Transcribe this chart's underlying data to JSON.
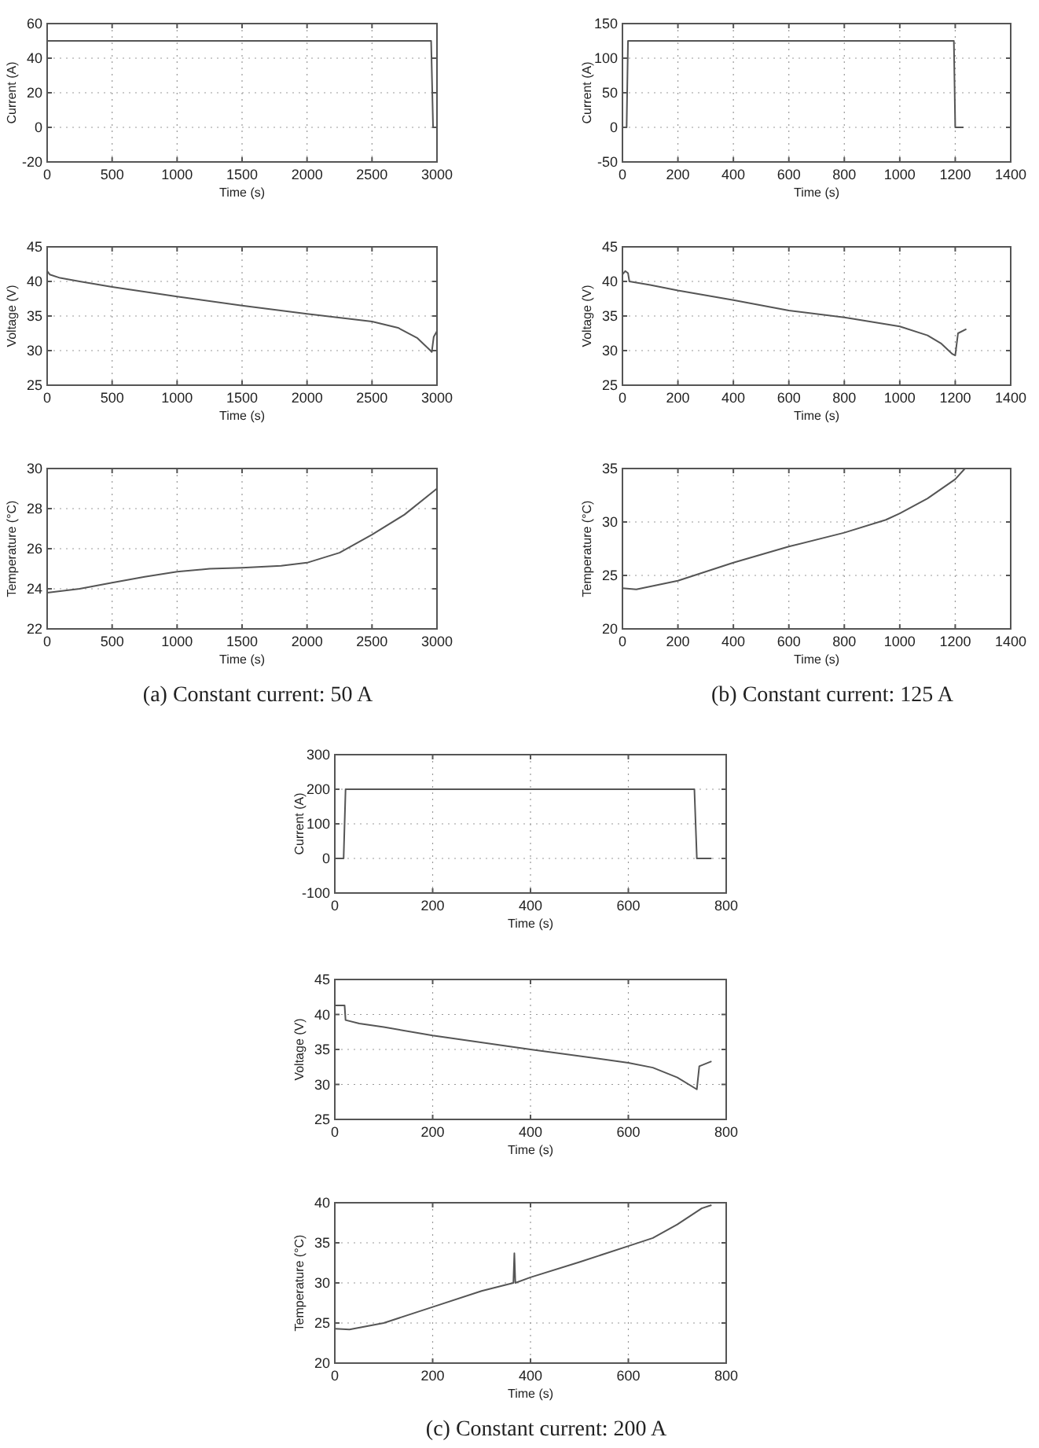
{
  "chart_data": [
    {
      "type": "line",
      "xlabel": "Time (s)",
      "ylabel": "Current (A)",
      "xlim": [
        0,
        3000
      ],
      "xticks": [
        0,
        500,
        1000,
        1500,
        2000,
        2500,
        3000
      ],
      "ylim": [
        -20,
        60
      ],
      "yticks": [
        -20,
        0,
        20,
        40,
        60
      ],
      "grid": true,
      "line_style": "solid",
      "series": [
        {
          "color": "#555555",
          "x": [
            0,
            2955,
            2970,
            3000
          ],
          "values": [
            50,
            50,
            0,
            0
          ]
        }
      ]
    },
    {
      "type": "line",
      "xlabel": "Time (s)",
      "ylabel": "Voltage (V)",
      "xlim": [
        0,
        3000
      ],
      "xticks": [
        0,
        500,
        1000,
        1500,
        2000,
        2500,
        3000
      ],
      "ylim": [
        25,
        45
      ],
      "yticks": [
        25,
        30,
        35,
        40,
        45
      ],
      "grid": true,
      "line_style": "solid",
      "series": [
        {
          "color": "#555555",
          "x": [
            0,
            20,
            100,
            250,
            500,
            1000,
            1500,
            2000,
            2500,
            2700,
            2850,
            2950,
            2960,
            2975,
            3000
          ],
          "values": [
            41.5,
            41,
            40.5,
            40,
            39.2,
            37.8,
            36.5,
            35.3,
            34.2,
            33.3,
            31.8,
            30,
            29.8,
            32,
            32.8
          ]
        }
      ]
    },
    {
      "type": "line",
      "xlabel": "Time (s)",
      "ylabel": "Temperature (°C)",
      "xlim": [
        0,
        3000
      ],
      "xticks": [
        0,
        500,
        1000,
        1500,
        2000,
        2500,
        3000
      ],
      "ylim": [
        22,
        30
      ],
      "yticks": [
        22,
        24,
        26,
        28,
        30
      ],
      "grid": true,
      "line_style": "solid",
      "annotations": [
        "(a) Constant current: 50 A"
      ],
      "series": [
        {
          "color": "#555555",
          "x": [
            0,
            250,
            500,
            750,
            1000,
            1250,
            1500,
            1800,
            2000,
            2250,
            2500,
            2750,
            3000
          ],
          "values": [
            23.8,
            24,
            24.3,
            24.6,
            24.85,
            25,
            25.05,
            25.15,
            25.3,
            25.8,
            26.7,
            27.7,
            29
          ]
        }
      ]
    },
    {
      "type": "line",
      "xlabel": "Time (s)",
      "ylabel": "Current (A)",
      "xlim": [
        0,
        1400
      ],
      "xticks": [
        0,
        200,
        400,
        600,
        800,
        1000,
        1200,
        1400
      ],
      "ylim": [
        -50,
        150
      ],
      "yticks": [
        -50,
        0,
        50,
        100,
        150
      ],
      "grid": true,
      "line_style": "solid",
      "series": [
        {
          "color": "#555555",
          "x": [
            0,
            15,
            20,
            1195,
            1200,
            1230
          ],
          "values": [
            0,
            0,
            125,
            125,
            0,
            0
          ]
        }
      ]
    },
    {
      "type": "line",
      "xlabel": "Time (s)",
      "ylabel": "Voltage (V)",
      "xlim": [
        0,
        1400
      ],
      "xticks": [
        0,
        200,
        400,
        600,
        800,
        1000,
        1200,
        1400
      ],
      "ylim": [
        25,
        45
      ],
      "yticks": [
        25,
        30,
        35,
        40,
        45
      ],
      "grid": true,
      "line_style": "solid",
      "series": [
        {
          "color": "#555555",
          "x": [
            0,
            10,
            20,
            25,
            100,
            200,
            400,
            600,
            800,
            1000,
            1100,
            1150,
            1190,
            1200,
            1210,
            1240
          ],
          "values": [
            41,
            41.5,
            41.2,
            40,
            39.5,
            38.7,
            37.3,
            35.8,
            34.8,
            33.5,
            32.2,
            31,
            29.5,
            29.3,
            32.5,
            33.1
          ]
        }
      ]
    },
    {
      "type": "line",
      "xlabel": "Time (s)",
      "ylabel": "Temperature (°C)",
      "xlim": [
        0,
        1400
      ],
      "xticks": [
        0,
        200,
        400,
        600,
        800,
        1000,
        1200,
        1400
      ],
      "ylim": [
        20,
        35
      ],
      "yticks": [
        20,
        25,
        30,
        35
      ],
      "grid": true,
      "line_style": "solid",
      "annotations": [
        "(b) Constant current: 125 A"
      ],
      "series": [
        {
          "color": "#555555",
          "x": [
            0,
            50,
            200,
            400,
            600,
            800,
            950,
            1000,
            1100,
            1200,
            1235
          ],
          "values": [
            23.8,
            23.7,
            24.5,
            26.2,
            27.7,
            29,
            30.2,
            30.8,
            32.2,
            34,
            35
          ]
        }
      ]
    },
    {
      "type": "line",
      "xlabel": "Time (s)",
      "ylabel": "Current (A)",
      "xlim": [
        0,
        800
      ],
      "xticks": [
        0,
        200,
        400,
        600,
        800
      ],
      "ylim": [
        -100,
        300
      ],
      "yticks": [
        -100,
        0,
        100,
        200,
        300
      ],
      "grid": true,
      "line_style": "solid",
      "series": [
        {
          "color": "#555555",
          "x": [
            0,
            18,
            22,
            735,
            740,
            770
          ],
          "values": [
            0,
            0,
            200,
            200,
            0,
            0
          ]
        }
      ]
    },
    {
      "type": "line",
      "xlabel": "Time (s)",
      "ylabel": "Voltage (V)",
      "xlim": [
        0,
        800
      ],
      "xticks": [
        0,
        200,
        400,
        600,
        800
      ],
      "ylim": [
        25,
        45
      ],
      "yticks": [
        25,
        30,
        35,
        40,
        45
      ],
      "grid": true,
      "line_style": "solid",
      "series": [
        {
          "color": "#555555",
          "x": [
            0,
            20,
            22,
            50,
            100,
            200,
            400,
            600,
            650,
            700,
            740,
            745,
            770
          ],
          "values": [
            41.3,
            41.3,
            39.2,
            38.7,
            38.2,
            37,
            35,
            33.1,
            32.4,
            31,
            29.3,
            32.6,
            33.3
          ]
        }
      ]
    },
    {
      "type": "line",
      "xlabel": "Time (s)",
      "ylabel": "Temperature (°C)",
      "xlim": [
        0,
        800
      ],
      "xticks": [
        0,
        200,
        400,
        600,
        800
      ],
      "ylim": [
        20,
        40
      ],
      "yticks": [
        20,
        25,
        30,
        35,
        40
      ],
      "grid": true,
      "line_style": "solid",
      "annotations": [
        "(c) Constant current: 200 A"
      ],
      "series": [
        {
          "color": "#555555",
          "x": [
            0,
            30,
            100,
            200,
            300,
            365,
            367,
            369,
            400,
            500,
            600,
            650,
            700,
            750,
            770
          ],
          "values": [
            24.3,
            24.2,
            25,
            27,
            29,
            30,
            33.7,
            30,
            30.7,
            32.6,
            34.6,
            35.6,
            37.3,
            39.3,
            39.7
          ]
        }
      ]
    }
  ]
}
